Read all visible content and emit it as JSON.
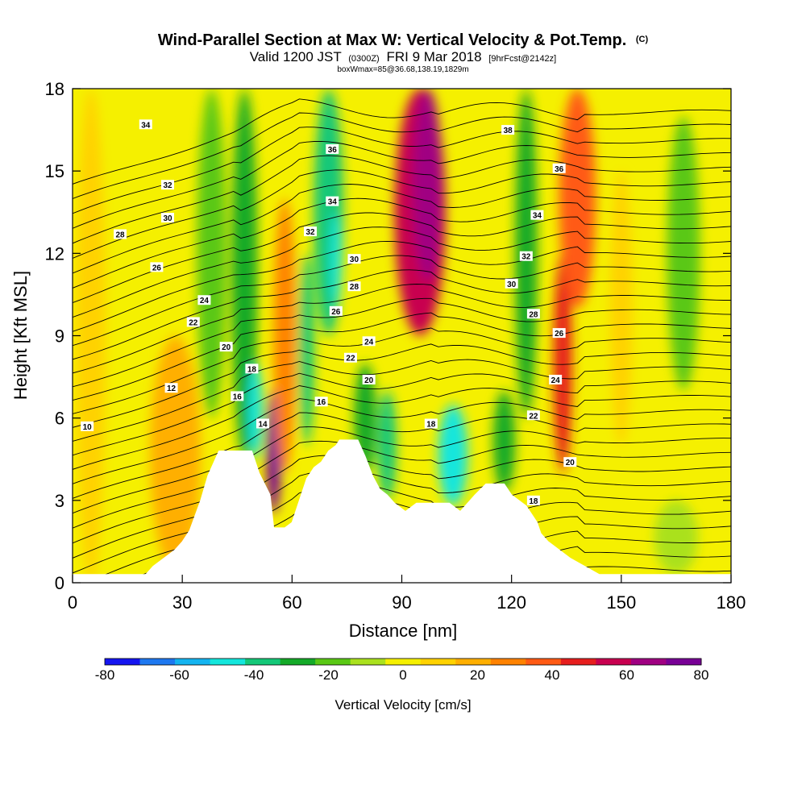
{
  "chart_data": {
    "type": "heatmap",
    "title": "Wind-Parallel Section at Max W: Vertical Velocity & Pot.Temp.",
    "title_mark": "(C)",
    "subtitle_parts": [
      "Valid 1200 JST",
      "(0300Z)",
      "FRI 9 Mar 2018",
      "[9hrFcst@2142z]"
    ],
    "subtitle2": "boxWmax=85@36.68,138.19,1829m",
    "xlabel": "Distance [nm]",
    "ylabel": "Height [Kft MSL]",
    "xlim": [
      0,
      180
    ],
    "ylim": [
      0,
      18
    ],
    "x_ticks": [
      "0",
      "30",
      "60",
      "90",
      "120",
      "150",
      "180"
    ],
    "y_ticks": [
      "0",
      "3",
      "6",
      "9",
      "12",
      "15",
      "18"
    ],
    "colorbar": {
      "label": "Vertical Velocity [cm/s]",
      "ticks": [
        "-80",
        "-60",
        "-40",
        "-20",
        "0",
        "20",
        "40",
        "60",
        "80"
      ],
      "range": [
        -80,
        80
      ],
      "colors": [
        "#1515f0",
        "#1e78f0",
        "#14b4f0",
        "#14e6dc",
        "#14c878",
        "#14aa28",
        "#5ac814",
        "#aae11e",
        "#f5f000",
        "#ffd200",
        "#ffaf00",
        "#ff8200",
        "#ff5a14",
        "#e61e1e",
        "#c80050",
        "#a00082",
        "#780096"
      ]
    },
    "terrain_profile": {
      "x": [
        0,
        20,
        22,
        25,
        28,
        30,
        32,
        35,
        37,
        40,
        49,
        51,
        54,
        55,
        58,
        60,
        62,
        64,
        66,
        68,
        70,
        72,
        73,
        78,
        80,
        82,
        84,
        86,
        88,
        91,
        94,
        103,
        106,
        110,
        113,
        118,
        120,
        124,
        127,
        128,
        130,
        133,
        136,
        140,
        144,
        147,
        149,
        180
      ],
      "y": [
        0.3,
        0.3,
        0.6,
        0.9,
        1.2,
        1.5,
        1.9,
        3.0,
        3.9,
        4.8,
        4.8,
        4.0,
        3.2,
        2.0,
        2.0,
        2.2,
        3.0,
        3.8,
        4.2,
        4.4,
        4.8,
        5.0,
        5.2,
        5.2,
        4.6,
        3.9,
        3.4,
        3.2,
        2.9,
        2.6,
        2.9,
        2.9,
        2.6,
        3.2,
        3.6,
        3.6,
        3.2,
        2.8,
        2.2,
        1.8,
        1.5,
        1.2,
        0.9,
        0.6,
        0.3,
        0.3,
        0.3,
        0.3
      ]
    },
    "vertical_velocity_bands": [
      {
        "x": 5,
        "y_bottom": 0,
        "y_top": 18,
        "width": 8,
        "w": 5
      },
      {
        "x": 22,
        "y_bottom": 2,
        "y_top": 18,
        "width": 10,
        "w": 2
      },
      {
        "x": 28,
        "y_bottom": 0.5,
        "y_top": 9,
        "width": 14,
        "w": 15
      },
      {
        "x": 38,
        "y_bottom": 6,
        "y_top": 18,
        "width": 8,
        "w": -15
      },
      {
        "x": 47,
        "y_bottom": 4.5,
        "y_top": 18,
        "width": 7,
        "w": -25
      },
      {
        "x": 50,
        "y_bottom": 4.5,
        "y_top": 8,
        "width": 4,
        "w": -45
      },
      {
        "x": 55,
        "y_bottom": 2.5,
        "y_top": 7,
        "width": 4,
        "w": 75
      },
      {
        "x": 58,
        "y_bottom": 4,
        "y_top": 14,
        "width": 6,
        "w": 25
      },
      {
        "x": 64,
        "y_bottom": 5,
        "y_top": 12,
        "width": 4,
        "w": -35
      },
      {
        "x": 70,
        "y_bottom": 9,
        "y_top": 18,
        "width": 8,
        "w": -35
      },
      {
        "x": 72,
        "y_bottom": 10,
        "y_top": 13.5,
        "width": 3,
        "w": -45
      },
      {
        "x": 80,
        "y_bottom": 4,
        "y_top": 8,
        "width": 6,
        "w": -25
      },
      {
        "x": 86,
        "y_bottom": 3,
        "y_top": 7,
        "width": 5,
        "w": -35
      },
      {
        "x": 95,
        "y_bottom": 9,
        "y_top": 18,
        "width": 14,
        "w": 55
      },
      {
        "x": 97,
        "y_bottom": 11,
        "y_top": 18,
        "width": 8,
        "w": 70
      },
      {
        "x": 104,
        "y_bottom": 2.8,
        "y_top": 6.5,
        "width": 8,
        "w": -45
      },
      {
        "x": 118,
        "y_bottom": 3.3,
        "y_top": 7,
        "width": 6,
        "w": -25
      },
      {
        "x": 124,
        "y_bottom": 6,
        "y_top": 18,
        "width": 6,
        "w": -30
      },
      {
        "x": 134,
        "y_bottom": 4,
        "y_top": 12,
        "width": 5,
        "w": 45
      },
      {
        "x": 138,
        "y_bottom": 10,
        "y_top": 18,
        "width": 10,
        "w": 35
      },
      {
        "x": 150,
        "y_bottom": 5,
        "y_top": 15,
        "width": 6,
        "w": 5
      },
      {
        "x": 167,
        "y_bottom": 7,
        "y_top": 17,
        "width": 9,
        "w": -20
      },
      {
        "x": 165,
        "y_bottom": 0.3,
        "y_top": 3,
        "width": 12,
        "w": -10
      }
    ],
    "theta_contour_labels": [
      {
        "label": "34",
        "x": 20,
        "y": 16.7
      },
      {
        "label": "32",
        "x": 26,
        "y": 14.5
      },
      {
        "label": "30",
        "x": 26,
        "y": 13.3
      },
      {
        "label": "28",
        "x": 13,
        "y": 12.7
      },
      {
        "label": "26",
        "x": 23,
        "y": 11.5
      },
      {
        "label": "24",
        "x": 36,
        "y": 10.3
      },
      {
        "label": "22",
        "x": 33,
        "y": 9.5
      },
      {
        "label": "20",
        "x": 42,
        "y": 8.6
      },
      {
        "label": "18",
        "x": 49,
        "y": 7.8
      },
      {
        "label": "16",
        "x": 45,
        "y": 6.8
      },
      {
        "label": "14",
        "x": 52,
        "y": 5.8
      },
      {
        "label": "12",
        "x": 27,
        "y": 7.1
      },
      {
        "label": "10",
        "x": 4,
        "y": 5.7
      },
      {
        "label": "36",
        "x": 71,
        "y": 15.8
      },
      {
        "label": "34",
        "x": 71,
        "y": 13.9
      },
      {
        "label": "32",
        "x": 65,
        "y": 12.8
      },
      {
        "label": "30",
        "x": 77,
        "y": 11.8
      },
      {
        "label": "28",
        "x": 77,
        "y": 10.8
      },
      {
        "label": "26",
        "x": 72,
        "y": 9.9
      },
      {
        "label": "24",
        "x": 81,
        "y": 8.8
      },
      {
        "label": "22",
        "x": 76,
        "y": 8.2
      },
      {
        "label": "20",
        "x": 81,
        "y": 7.4
      },
      {
        "label": "16",
        "x": 68,
        "y": 6.6
      },
      {
        "label": "18",
        "x": 98,
        "y": 5.8
      },
      {
        "label": "38",
        "x": 119,
        "y": 16.5
      },
      {
        "label": "36",
        "x": 133,
        "y": 15.1
      },
      {
        "label": "34",
        "x": 127,
        "y": 13.4
      },
      {
        "label": "32",
        "x": 124,
        "y": 11.9
      },
      {
        "label": "30",
        "x": 120,
        "y": 10.9
      },
      {
        "label": "28",
        "x": 126,
        "y": 9.8
      },
      {
        "label": "26",
        "x": 133,
        "y": 9.1
      },
      {
        "label": "24",
        "x": 132,
        "y": 7.4
      },
      {
        "label": "22",
        "x": 126,
        "y": 6.1
      },
      {
        "label": "20",
        "x": 136,
        "y": 4.4
      },
      {
        "label": "18",
        "x": 126,
        "y": 3.0
      }
    ]
  }
}
